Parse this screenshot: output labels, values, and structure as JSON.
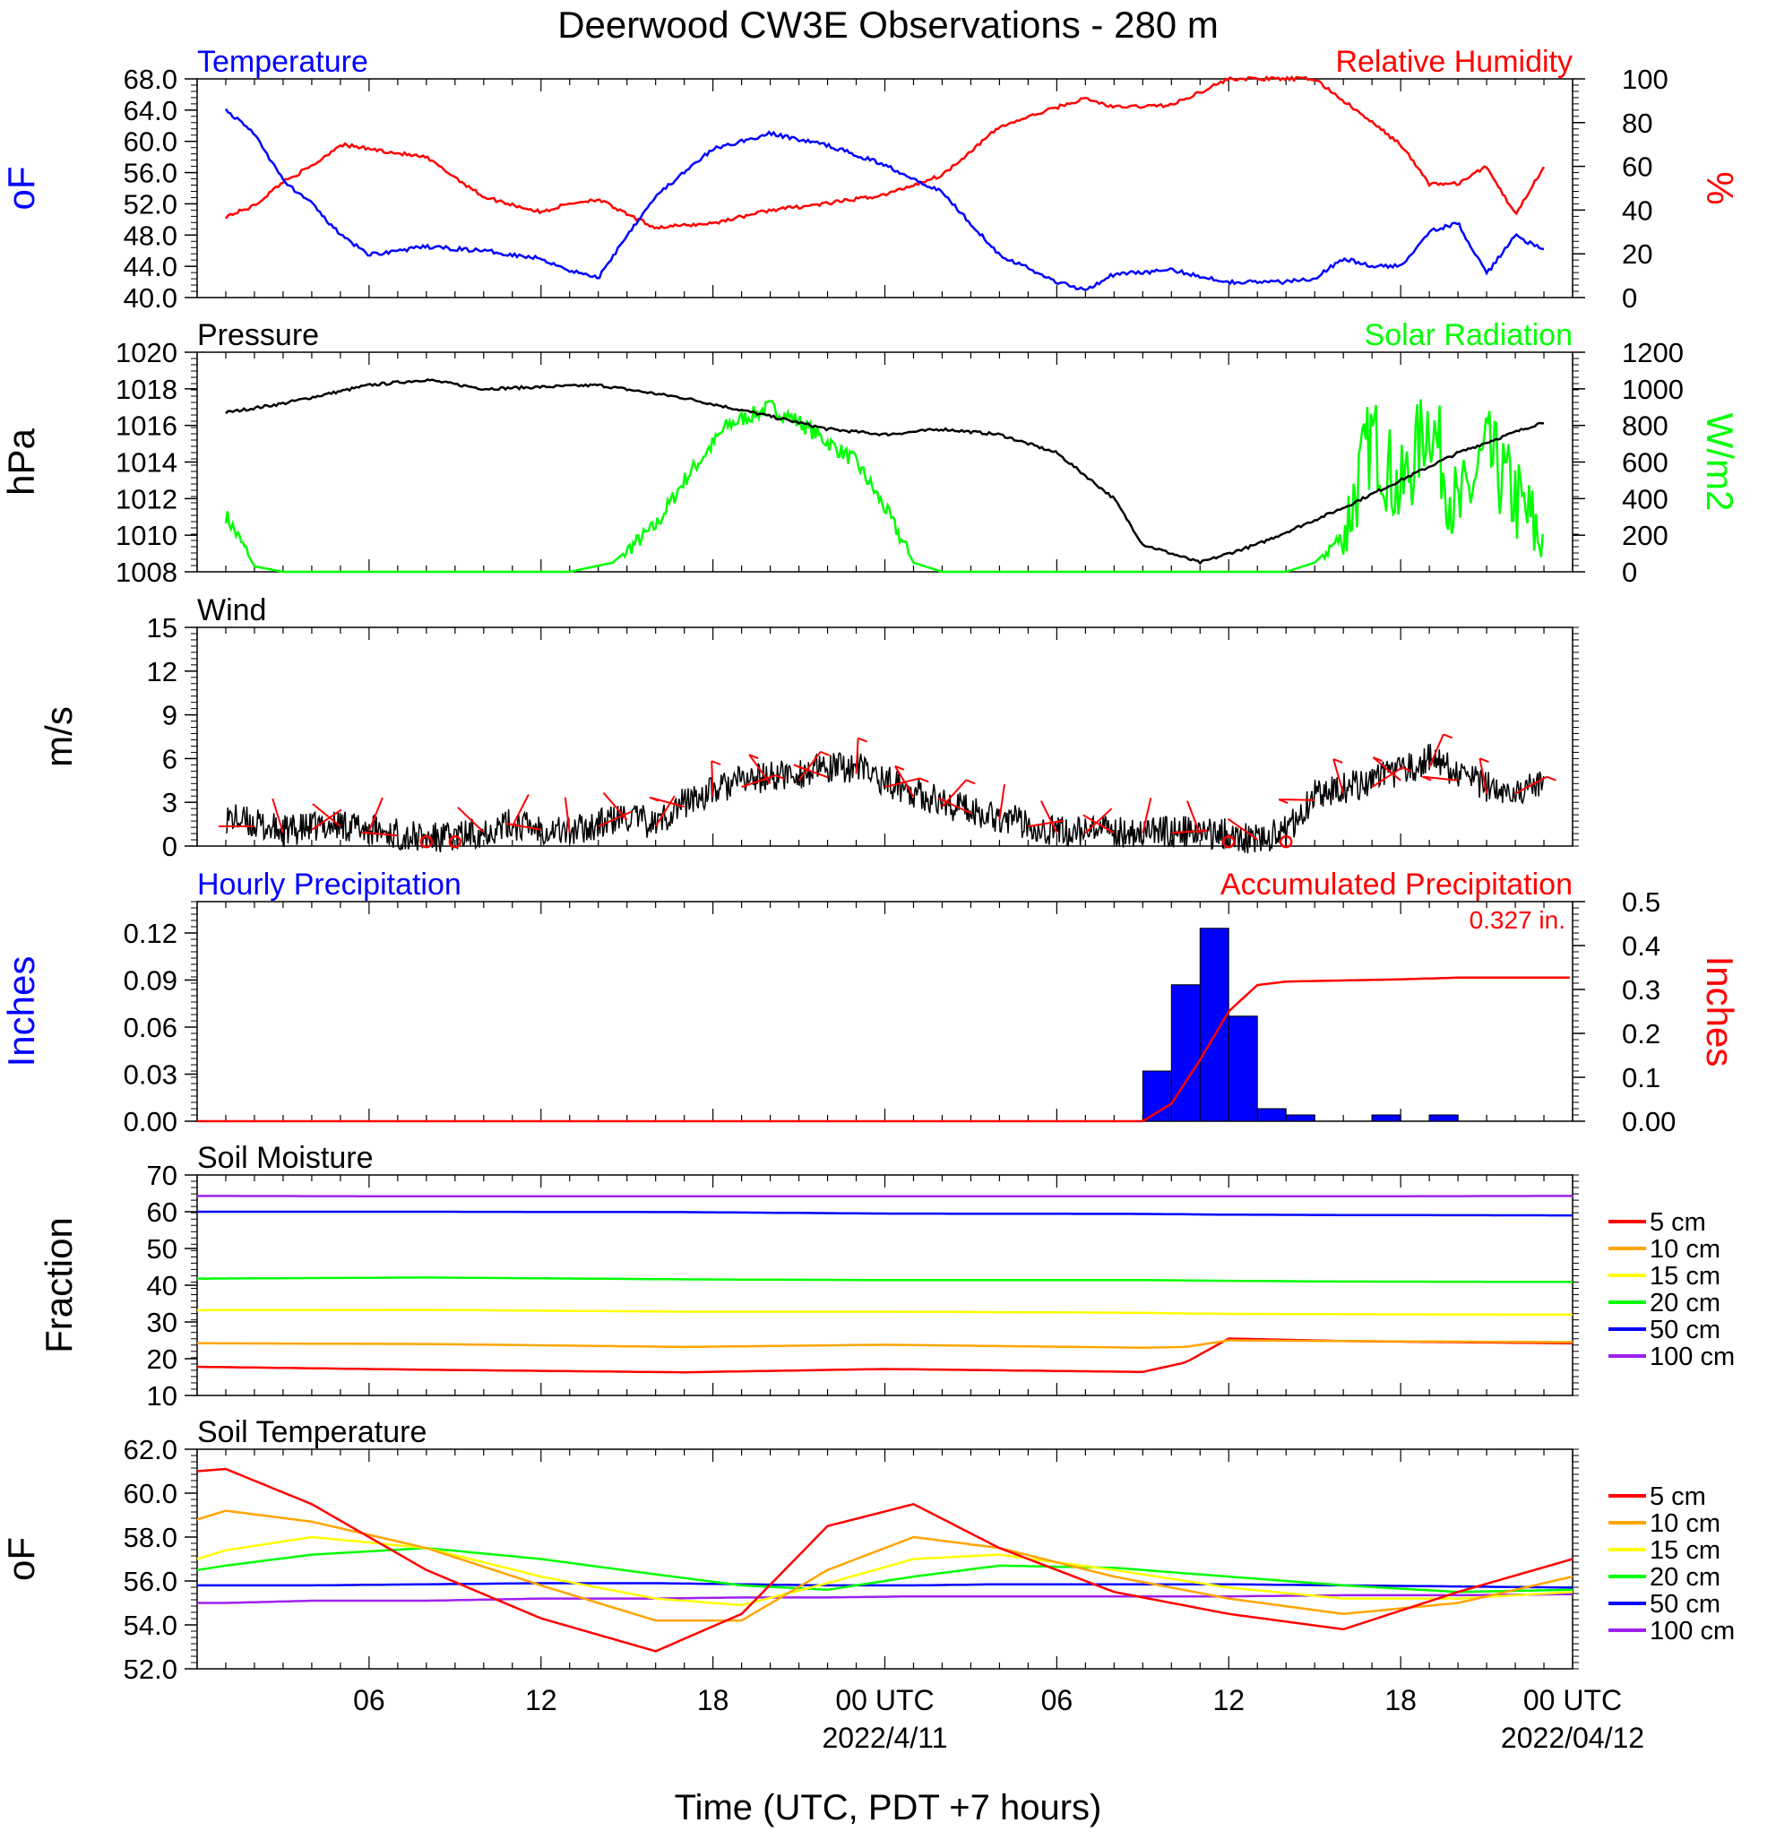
{
  "title": "Deerwood CW3E Observations - 280 m",
  "x_axis": {
    "label": "Time (UTC, PDT +7 hours)",
    "tick_labels": [
      "06",
      "12",
      "18",
      "00 UTC",
      "06",
      "12",
      "18",
      "00 UTC"
    ],
    "date_labels": [
      "2022/4/11",
      "2022/04/12"
    ]
  },
  "colors": {
    "temperature": "#0000ff",
    "humidity": "#ff0000",
    "pressure": "#000000",
    "solar": "#00ff00",
    "wind_speed": "#000000",
    "wind_barb": "#ff0000",
    "hourly_precip": "#0000ff",
    "accum_precip": "#ff0000",
    "depth_5cm": "#ff0000",
    "depth_10cm": "#ffa500",
    "depth_15cm": "#ffff00",
    "depth_20cm": "#00ff00",
    "depth_50cm": "#0000ff",
    "depth_100cm": "#a020f0"
  },
  "chart_data": [
    {
      "type": "line",
      "panel": "temperature_humidity",
      "left_title": "Temperature",
      "right_title": "Relative Humidity",
      "left_ylabel": "oF",
      "right_ylabel": "%",
      "left_ylim": [
        40,
        68
      ],
      "right_ylim": [
        0,
        100
      ],
      "left_ticks": [
        "68.0",
        "64.0",
        "60.0",
        "56.0",
        "52.0",
        "48.0",
        "44.0",
        "40.0"
      ],
      "right_ticks": [
        "100",
        "80",
        "60",
        "40",
        "20",
        "0"
      ],
      "x_hours": [
        1,
        2,
        3,
        4,
        5,
        6,
        8,
        10,
        12,
        13,
        14,
        15,
        16,
        18,
        20,
        22,
        24,
        26,
        28,
        30,
        31,
        32,
        34,
        36,
        38,
        39,
        40,
        41,
        42,
        43,
        44,
        45,
        46,
        47
      ],
      "series": [
        {
          "name": "Temperature",
          "axis": "left",
          "values": [
            64,
            61,
            55,
            52,
            48,
            45.5,
            46.5,
            46,
            45,
            43.5,
            42.5,
            48,
            53,
            59,
            61,
            59.5,
            57,
            53.5,
            45.5,
            42,
            41,
            43,
            43.5,
            42,
            42,
            42.5,
            45,
            44,
            44,
            48.5,
            49.5,
            43,
            48,
            46
          ]
        },
        {
          "name": "Relative Humidity",
          "axis": "left_hidden_right_scale",
          "values": [
            37,
            42,
            53,
            60,
            70,
            68,
            64,
            46,
            39,
            43,
            45,
            38,
            32,
            34,
            40,
            43,
            47,
            56,
            78,
            87,
            91,
            87,
            88,
            100,
            100,
            100,
            90,
            80,
            70,
            52,
            52,
            60,
            38,
            60
          ]
        }
      ]
    },
    {
      "type": "line",
      "panel": "pressure_solar",
      "left_title": "Pressure",
      "right_title": "Solar Radiation",
      "left_ylabel": "hPa",
      "right_ylabel": "W/m2",
      "left_ylim": [
        1008,
        1020
      ],
      "right_ylim": [
        0,
        1200
      ],
      "left_ticks": [
        "1020",
        "1018",
        "1016",
        "1014",
        "1012",
        "1010",
        "1008"
      ],
      "right_ticks": [
        "1200",
        "1000",
        "800",
        "600",
        "400",
        "200",
        "0"
      ],
      "x_hours": [
        1,
        3,
        6,
        8,
        10,
        14,
        17,
        20,
        22,
        24,
        26,
        28,
        30,
        32,
        33,
        35,
        37,
        40,
        42,
        44,
        47
      ],
      "series": [
        {
          "name": "Pressure",
          "axis": "left",
          "values": [
            1016.7,
            1017.2,
            1018.2,
            1018.5,
            1018.0,
            1018.2,
            1017.5,
            1016.5,
            1015.8,
            1015.5,
            1015.8,
            1015.5,
            1014.5,
            1012.0,
            1009.5,
            1008.5,
            1009.5,
            1011.5,
            1013.0,
            1014.5,
            1016.2
          ]
        },
        {
          "name": "Solar Radiation",
          "axis": "right",
          "points": [
            [
              1,
              310
            ],
            [
              2,
              30
            ],
            [
              3,
              0
            ],
            [
              13,
              0
            ],
            [
              14.5,
              50
            ],
            [
              16,
              250
            ],
            [
              17,
              500
            ],
            [
              18.5,
              800
            ],
            [
              20,
              900
            ],
            [
              21,
              820
            ],
            [
              23,
              600
            ],
            [
              24,
              350
            ],
            [
              25,
              50
            ],
            [
              26,
              0
            ],
            [
              38,
              0
            ],
            [
              39,
              50
            ],
            [
              40,
              200
            ],
            [
              41,
              750
            ],
            [
              42,
              420
            ],
            [
              43,
              850
            ],
            [
              44,
              300
            ],
            [
              45,
              650
            ],
            [
              46,
              400
            ],
            [
              47,
              150
            ]
          ]
        }
      ]
    },
    {
      "type": "line",
      "panel": "wind",
      "left_title": "Wind",
      "left_ylabel": "m/s",
      "ylim": [
        0,
        15
      ],
      "ticks": [
        "15",
        "12",
        "9",
        "6",
        "3",
        "0"
      ],
      "x_hours": [
        1,
        3,
        5,
        7,
        8,
        9,
        11,
        13,
        15,
        16,
        17,
        19,
        21,
        23,
        24,
        26,
        28,
        30,
        32,
        34,
        36,
        37,
        38,
        39,
        40,
        42,
        43,
        45,
        47
      ],
      "series": [
        {
          "name": "Wind speed",
          "values": [
            2,
            1,
            1.5,
            0.8,
            0.5,
            0.6,
            1.5,
            1,
            2,
            1.5,
            3,
            4.5,
            5,
            5.5,
            4.5,
            3,
            2,
            1,
            1,
            1,
            0.8,
            0.5,
            1,
            3.5,
            4,
            5,
            6,
            4,
            4
          ]
        }
      ],
      "barbs": {
        "x_hours": [
          2,
          3,
          4,
          5,
          6,
          7,
          8,
          9,
          10,
          11,
          12,
          13,
          14,
          15,
          16,
          17,
          18,
          19,
          20,
          21,
          22,
          23,
          24,
          25,
          26,
          27,
          28,
          29,
          30,
          31,
          32,
          33,
          34,
          35,
          36,
          37,
          38,
          39,
          40,
          41,
          42,
          43,
          44,
          45,
          46
        ],
        "calm": [
          8,
          9,
          36,
          38
        ]
      }
    },
    {
      "type": "bar",
      "panel": "precipitation",
      "left_title": "Hourly Precipitation",
      "right_title": "Accumulated Precipitation",
      "total_label": "0.327 in.",
      "left_ylabel": "Inches",
      "right_ylabel": "Inches",
      "left_ylim": [
        0,
        0.14
      ],
      "right_ylim": [
        0,
        0.5
      ],
      "left_ticks": [
        "0.12",
        "0.09",
        "0.06",
        "0.03",
        "0.00"
      ],
      "right_ticks": [
        "0.5",
        "0.4",
        "0.3",
        "0.2",
        "0.1",
        "0.00"
      ],
      "bars": [
        [
          33,
          0.032
        ],
        [
          34,
          0.087
        ],
        [
          35,
          0.123
        ],
        [
          36,
          0.067
        ],
        [
          37,
          0.008
        ],
        [
          38,
          0.004
        ],
        [
          41,
          0.004
        ],
        [
          43,
          0.004
        ]
      ],
      "accumulated": [
        [
          0,
          0
        ],
        [
          33,
          0
        ],
        [
          34,
          0.04
        ],
        [
          35,
          0.14
        ],
        [
          36,
          0.25
        ],
        [
          37,
          0.31
        ],
        [
          38,
          0.318
        ],
        [
          42,
          0.323
        ],
        [
          44,
          0.327
        ],
        [
          48,
          0.327
        ]
      ]
    },
    {
      "type": "line",
      "panel": "soil_moisture",
      "left_title": "Soil Moisture",
      "left_ylabel": "Fraction",
      "ylim": [
        10,
        70
      ],
      "ticks": [
        "70",
        "60",
        "50",
        "40",
        "30",
        "20",
        "10"
      ],
      "legend": [
        "5 cm",
        "10 cm",
        "15 cm",
        "20 cm",
        "50 cm",
        "100 cm"
      ],
      "x_hours": [
        0,
        8,
        17,
        24,
        33,
        34.5,
        36,
        40,
        48
      ],
      "series": [
        {
          "name": "5 cm",
          "values": [
            17.8,
            17,
            16.3,
            17.2,
            16.4,
            19,
            25.5,
            24.8,
            24.2
          ]
        },
        {
          "name": "10 cm",
          "values": [
            24.2,
            24,
            23.2,
            23.8,
            23,
            23.2,
            25,
            24.8,
            24.5
          ]
        },
        {
          "name": "15 cm",
          "values": [
            33.2,
            33.3,
            32.8,
            32.8,
            32.5,
            32.3,
            32.2,
            32.1,
            32
          ]
        },
        {
          "name": "20 cm",
          "values": [
            41.8,
            42.1,
            41.6,
            41.4,
            41.4,
            41.3,
            41.2,
            41,
            40.9
          ]
        },
        {
          "name": "50 cm",
          "values": [
            60,
            60,
            59.9,
            59.5,
            59.4,
            59.3,
            59.2,
            59.1,
            59
          ]
        },
        {
          "name": "100 cm",
          "values": [
            64.3,
            64.2,
            64.2,
            64.2,
            64.2,
            64.2,
            64.2,
            64.2,
            64.3
          ]
        }
      ]
    },
    {
      "type": "line",
      "panel": "soil_temperature",
      "left_title": "Soil Temperature",
      "left_ylabel": "oF",
      "ylim": [
        52,
        62
      ],
      "ticks": [
        "62.0",
        "60.0",
        "58.0",
        "56.0",
        "54.0",
        "52.0"
      ],
      "legend": [
        "5 cm",
        "10 cm",
        "15 cm",
        "20 cm",
        "50 cm",
        "100 cm"
      ],
      "x_hours": [
        0,
        1,
        4,
        8,
        12,
        16,
        19,
        22,
        25,
        28,
        32,
        36,
        40,
        44,
        48
      ],
      "series": [
        {
          "name": "5 cm",
          "values": [
            61,
            61.1,
            59.5,
            56.5,
            54.3,
            52.8,
            54.5,
            58.5,
            59.5,
            57.5,
            55.5,
            54.5,
            53.8,
            55.5,
            57
          ]
        },
        {
          "name": "10 cm",
          "values": [
            58.8,
            59.2,
            58.7,
            57.5,
            55.8,
            54.2,
            54.2,
            56.5,
            58,
            57.5,
            56.2,
            55.2,
            54.5,
            55,
            56.2
          ]
        },
        {
          "name": "15 cm",
          "values": [
            57,
            57.4,
            58,
            57.5,
            56.2,
            55.2,
            54.9,
            55.9,
            57,
            57.2,
            56.5,
            55.7,
            55.2,
            55.2,
            55.5
          ]
        },
        {
          "name": "20 cm",
          "values": [
            56.5,
            56.7,
            57.2,
            57.5,
            57,
            56.3,
            55.8,
            55.6,
            56.2,
            56.7,
            56.6,
            56.2,
            55.8,
            55.5,
            55.6
          ]
        },
        {
          "name": "50 cm",
          "values": [
            55.8,
            55.8,
            55.8,
            55.85,
            55.9,
            55.9,
            55.85,
            55.8,
            55.8,
            55.85,
            55.85,
            55.85,
            55.8,
            55.75,
            55.7
          ]
        },
        {
          "name": "100 cm",
          "values": [
            55,
            55,
            55.1,
            55.1,
            55.2,
            55.2,
            55.25,
            55.25,
            55.3,
            55.3,
            55.3,
            55.3,
            55.35,
            55.35,
            55.4
          ]
        }
      ]
    }
  ]
}
